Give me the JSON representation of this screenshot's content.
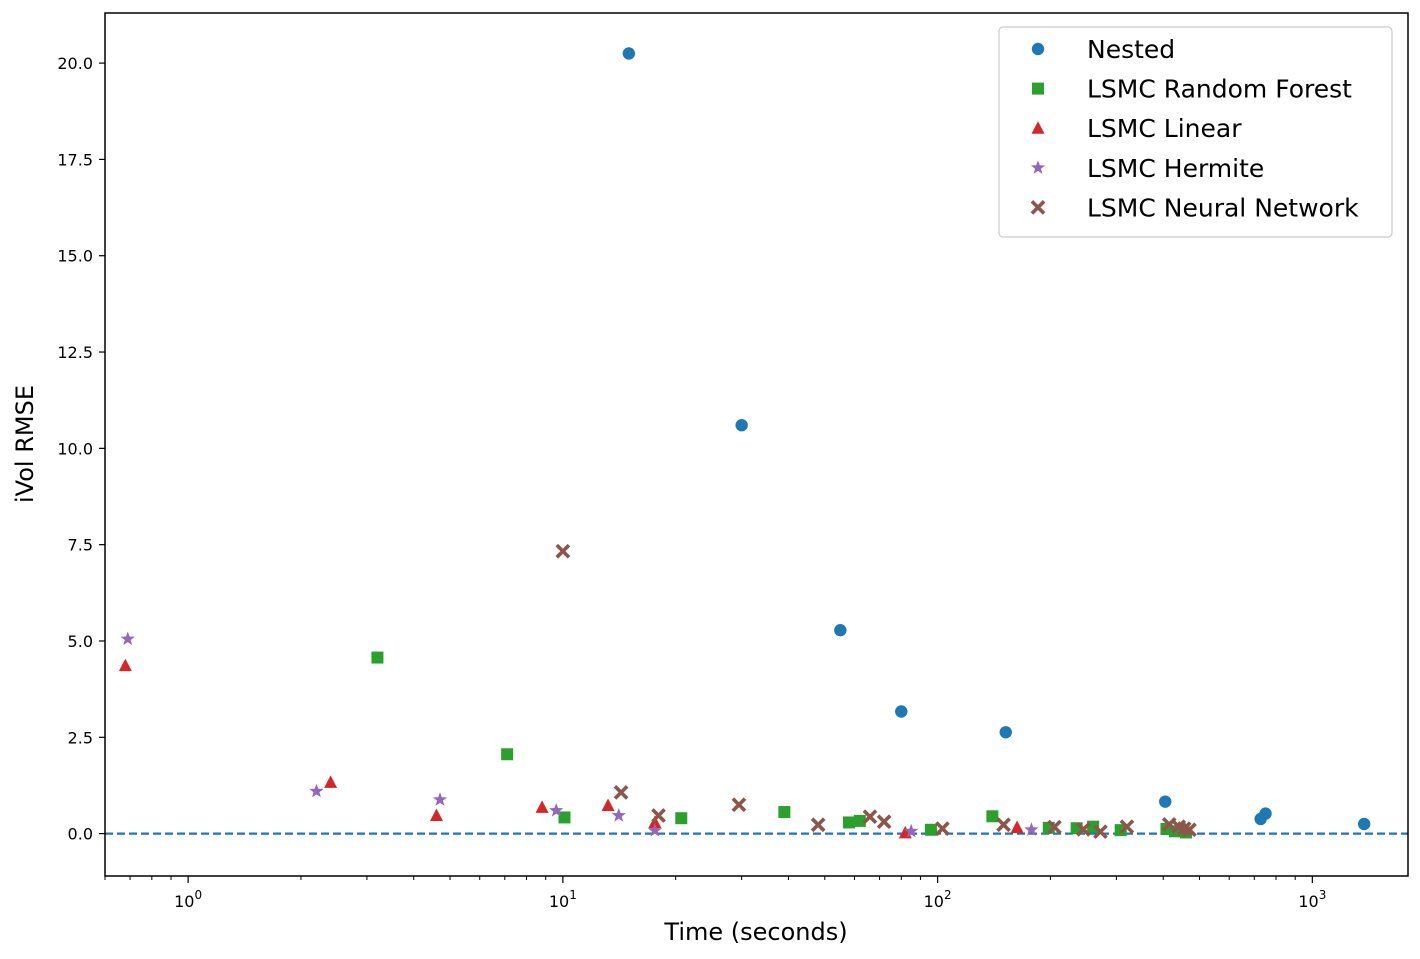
{
  "chart_data": {
    "type": "scatter",
    "xlabel": "Time (seconds)",
    "ylabel": "iVol RMSE",
    "x_scale": "log",
    "xlim": [
      0.6,
      1800
    ],
    "ylim": [
      -1.1,
      21.3
    ],
    "x_ticks": [
      {
        "value": 1,
        "base": "10",
        "exp": "0"
      },
      {
        "value": 10,
        "base": "10",
        "exp": "1"
      },
      {
        "value": 100,
        "base": "10",
        "exp": "2"
      },
      {
        "value": 1000,
        "base": "10",
        "exp": "3"
      }
    ],
    "y_ticks": [
      {
        "value": 0,
        "label": "0.0"
      },
      {
        "value": 2.5,
        "label": "2.5"
      },
      {
        "value": 5,
        "label": "5.0"
      },
      {
        "value": 7.5,
        "label": "7.5"
      },
      {
        "value": 10,
        "label": "10.0"
      },
      {
        "value": 12.5,
        "label": "12.5"
      },
      {
        "value": 15,
        "label": "15.0"
      },
      {
        "value": 17.5,
        "label": "17.5"
      },
      {
        "value": 20,
        "label": "20.0"
      }
    ],
    "reference_line": {
      "y": 0,
      "style": "dashed",
      "color": "#1f77b4"
    },
    "legend": "top-right",
    "grid": false,
    "series": [
      {
        "name": "Nested",
        "marker": "circle",
        "color": "#1f77b4",
        "points": [
          {
            "x": 15,
            "y": 20.25
          },
          {
            "x": 30,
            "y": 10.6
          },
          {
            "x": 55,
            "y": 5.28
          },
          {
            "x": 80,
            "y": 3.17
          },
          {
            "x": 152,
            "y": 2.63
          },
          {
            "x": 405,
            "y": 0.83
          },
          {
            "x": 728,
            "y": 0.38
          },
          {
            "x": 750,
            "y": 0.52
          },
          {
            "x": 1375,
            "y": 0.25
          }
        ]
      },
      {
        "name": "LSMC Random Forest",
        "marker": "square",
        "color": "#2ca02c",
        "points": [
          {
            "x": 3.2,
            "y": 4.57
          },
          {
            "x": 7.1,
            "y": 2.06
          },
          {
            "x": 10.1,
            "y": 0.42
          },
          {
            "x": 20.7,
            "y": 0.4
          },
          {
            "x": 39,
            "y": 0.56
          },
          {
            "x": 58,
            "y": 0.29
          },
          {
            "x": 62,
            "y": 0.33
          },
          {
            "x": 96,
            "y": 0.1
          },
          {
            "x": 140,
            "y": 0.45
          },
          {
            "x": 198,
            "y": 0.15
          },
          {
            "x": 235,
            "y": 0.14
          },
          {
            "x": 260,
            "y": 0.18
          },
          {
            "x": 308,
            "y": 0.09
          },
          {
            "x": 408,
            "y": 0.12
          },
          {
            "x": 430,
            "y": 0.06
          },
          {
            "x": 460,
            "y": 0.03
          }
        ]
      },
      {
        "name": "LSMC Linear",
        "marker": "triangle",
        "color": "#d62728",
        "points": [
          {
            "x": 0.68,
            "y": 4.36
          },
          {
            "x": 2.4,
            "y": 1.33
          },
          {
            "x": 4.6,
            "y": 0.47
          },
          {
            "x": 8.8,
            "y": 0.68
          },
          {
            "x": 13.2,
            "y": 0.73
          },
          {
            "x": 17.6,
            "y": 0.29
          },
          {
            "x": 82,
            "y": 0.02
          },
          {
            "x": 163,
            "y": 0.16
          }
        ]
      },
      {
        "name": "LSMC Hermite",
        "marker": "star",
        "color": "#9467bd",
        "points": [
          {
            "x": 0.69,
            "y": 5.05
          },
          {
            "x": 2.2,
            "y": 1.1
          },
          {
            "x": 4.7,
            "y": 0.88
          },
          {
            "x": 9.6,
            "y": 0.6
          },
          {
            "x": 14.1,
            "y": 0.47
          },
          {
            "x": 17.6,
            "y": 0.08
          },
          {
            "x": 85,
            "y": 0.06
          },
          {
            "x": 178,
            "y": 0.1
          }
        ]
      },
      {
        "name": "LSMC Neural Network",
        "marker": "x",
        "color": "#8c564b",
        "points": [
          {
            "x": 10,
            "y": 7.33
          },
          {
            "x": 14.3,
            "y": 1.07
          },
          {
            "x": 18,
            "y": 0.47
          },
          {
            "x": 29.5,
            "y": 0.75
          },
          {
            "x": 48,
            "y": 0.23
          },
          {
            "x": 66,
            "y": 0.44
          },
          {
            "x": 72,
            "y": 0.31
          },
          {
            "x": 103,
            "y": 0.13
          },
          {
            "x": 150,
            "y": 0.23
          },
          {
            "x": 205,
            "y": 0.17
          },
          {
            "x": 245,
            "y": 0.11
          },
          {
            "x": 272,
            "y": 0.05
          },
          {
            "x": 320,
            "y": 0.18
          },
          {
            "x": 415,
            "y": 0.24
          },
          {
            "x": 440,
            "y": 0.18
          },
          {
            "x": 455,
            "y": 0.13
          },
          {
            "x": 470,
            "y": 0.1
          }
        ]
      }
    ]
  }
}
